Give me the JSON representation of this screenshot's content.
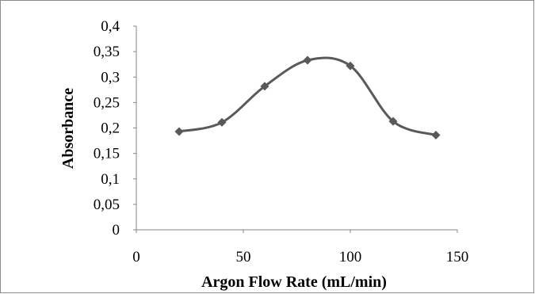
{
  "chart_data": {
    "type": "line",
    "title": "",
    "xlabel": "Argon Flow Rate (mL/min)",
    "ylabel": "Absorbance",
    "xlim": [
      0,
      150
    ],
    "ylim": [
      0,
      0.4
    ],
    "x_ticks": [
      "0",
      "50",
      "100",
      "150"
    ],
    "y_ticks": [
      "0",
      "0,05",
      "0,1",
      "0,15",
      "0,2",
      "0,25",
      "0,3",
      "0,35",
      "0,4"
    ],
    "grid": false,
    "legend": "none",
    "smooth": true,
    "marker": "diamond",
    "series": [
      {
        "x": [
          20,
          40,
          60,
          80,
          100,
          120,
          140
        ],
        "values": [
          0.193,
          0.211,
          0.282,
          0.333,
          0.322,
          0.213,
          0.186
        ],
        "color": "#595959"
      }
    ]
  }
}
